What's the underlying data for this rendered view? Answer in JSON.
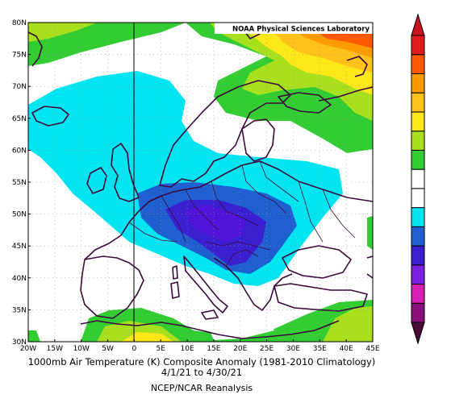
{
  "map": {
    "credit": "NOAA Physical Sciences Laboratory",
    "lat_ticks": [
      "30N",
      "35N",
      "40N",
      "45N",
      "50N",
      "55N",
      "60N",
      "65N",
      "70N",
      "75N",
      "80N"
    ],
    "lon_ticks": [
      "20W",
      "15W",
      "10W",
      "5W",
      "0",
      "5E",
      "10E",
      "15E",
      "20E",
      "25E",
      "30E",
      "35E",
      "40E",
      "45E"
    ],
    "lon_range": [
      -20,
      45
    ],
    "lat_range": [
      30,
      80
    ]
  },
  "caption": {
    "line1": "1000mb Air Temperature (K) Composite Anomaly (1981-2010 Climatology)",
    "line2": "4/1/21  to 4/30/21",
    "line3": "NCEP/NCAR Reanalysis"
  },
  "colorbar": {
    "colors": [
      "#8b0f7a",
      "#d81eb4",
      "#7b1fe0",
      "#3a1fd0",
      "#1f5fd0",
      "#00e5f0",
      "#ffffff",
      "#ffffff",
      "#33cc33",
      "#a8e01e",
      "#ffe81a",
      "#ffc21a",
      "#ff9a00",
      "#ff5a00",
      "#e01a1a"
    ],
    "bottom_arrow_color": "#4a0a3a",
    "top_arrow_color": "#c8141e"
  },
  "palette": {
    "cyan": "#00e5f0",
    "blue_mid": "#1f5fd0",
    "blue_dark": "#3a1fd0",
    "purple": "#4f14d8",
    "green": "#33cc33",
    "lime": "#a8e01e",
    "yellow": "#ffe81a",
    "gold": "#ffc21a",
    "orange": "#ff9a00",
    "red": "#ff5a00",
    "coast": "#3a0a3a"
  }
}
